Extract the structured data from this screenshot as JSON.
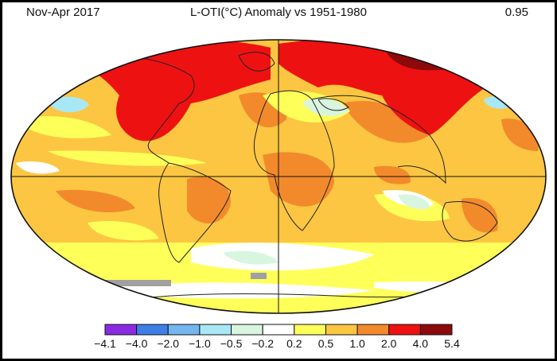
{
  "header": {
    "period": "Nov-Apr 2017",
    "title": "L-OTI(°C) Anomaly vs 1951-1980",
    "global_mean": "0.95"
  },
  "legend": {
    "colors": [
      "#8a2be2",
      "#3d7fe6",
      "#74b7f0",
      "#a8e8f6",
      "#d8f5e0",
      "#ffffff",
      "#ffff5a",
      "#fcc642",
      "#f28a2c",
      "#ee1111",
      "#8c0a0a"
    ],
    "ticks": [
      "−4.1",
      "−4.0",
      "−2.0",
      "−1.0",
      "−0.5",
      "−0.2",
      "0.2",
      "0.5",
      "1.0",
      "2.0",
      "4.0",
      "5.4"
    ]
  },
  "palette": {
    "base": "#fcc642",
    "warm": "#f28a2c",
    "hot": "#ee1111",
    "extreme": "#8c0a0a",
    "mild": "#ffff5a",
    "neutral": "#ffffff",
    "cool": "#d8f5e0",
    "cold": "#a8e8f6",
    "missing": "#a0a0a0",
    "coast": "#222222"
  }
}
